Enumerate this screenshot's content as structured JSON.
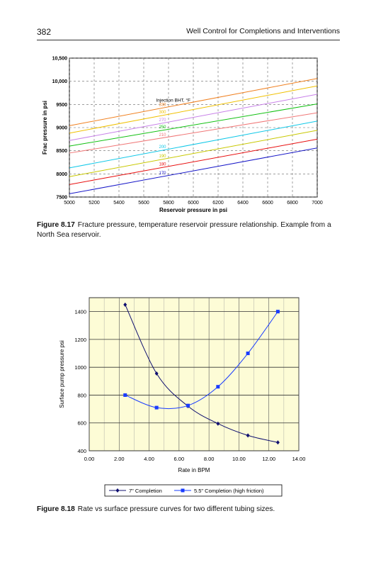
{
  "header": {
    "page_number": "382",
    "running_title": "Well Control for Completions and Interventions"
  },
  "figure1": {
    "caption_label": "Figure 8.17",
    "caption_text": "Fracture pressure, temperature reservoir pressure relationship. Example from a North Sea reservoir.",
    "legend_title": "Injection BHT, °F"
  },
  "figure2": {
    "caption_label": "Figure 8.18",
    "caption_text": "Rate vs surface pressure curves for two different tubing sizes."
  },
  "chart_data": [
    {
      "type": "line",
      "title": "",
      "xlabel": "Reservoir pressure in psi",
      "ylabel": "Frac pressure in psi",
      "xlim": [
        5000,
        7000
      ],
      "ylim": [
        7500,
        10500
      ],
      "x_ticks": [
        "5000",
        "5200",
        "5400",
        "5600",
        "5800",
        "6000",
        "6200",
        "6400",
        "6600",
        "6800",
        "7000"
      ],
      "y_ticks": [
        "7500",
        "8000",
        "8500",
        "9000",
        "9500",
        "10,000",
        "10,500"
      ],
      "grid": "dashed",
      "legend": "inline-left",
      "series": [
        {
          "name": "330",
          "color": "#f08020",
          "x": [
            5000,
            7000
          ],
          "y": [
            9040,
            10060
          ]
        },
        {
          "name": "300",
          "color": "#f0c000",
          "x": [
            5000,
            7000
          ],
          "y": [
            8880,
            9900
          ]
        },
        {
          "name": "270",
          "color": "#c880e8",
          "x": [
            5000,
            7000
          ],
          "y": [
            8720,
            9720
          ]
        },
        {
          "name": "250",
          "color": "#10c010",
          "x": [
            5000,
            7000
          ],
          "y": [
            8600,
            9510
          ]
        },
        {
          "name": "210",
          "color": "#f07878",
          "x": [
            5000,
            7000
          ],
          "y": [
            8450,
            9320
          ]
        },
        {
          "name": "200",
          "color": "#10c8e8",
          "x": [
            5000,
            7000
          ],
          "y": [
            8130,
            9140
          ]
        },
        {
          "name": "190",
          "color": "#c8c800",
          "x": [
            5000,
            7000
          ],
          "y": [
            7940,
            8940
          ]
        },
        {
          "name": "180",
          "color": "#e81010",
          "x": [
            5000,
            7000
          ],
          "y": [
            7770,
            8750
          ]
        },
        {
          "name": "170",
          "color": "#1818c8",
          "x": [
            5000,
            7000
          ],
          "y": [
            7570,
            8560
          ]
        }
      ]
    },
    {
      "type": "line",
      "title": "",
      "xlabel": "Rate in BPM",
      "ylabel": "Surface pump pressure psi",
      "xlim": [
        0,
        14
      ],
      "ylim": [
        400,
        1500
      ],
      "x_ticks": [
        "0.00",
        "2.00",
        "4.00",
        "6.00",
        "8.00",
        "10.00",
        "12.00",
        "14.00"
      ],
      "y_ticks": [
        "400",
        "600",
        "800",
        "1000",
        "1200",
        "1400"
      ],
      "grid": "on",
      "legend": "bottom",
      "series": [
        {
          "name": "7\" Completion",
          "color": "#101070",
          "marker": "diamond",
          "x": [
            2.4,
            4.5,
            6.6,
            8.6,
            10.6,
            12.6
          ],
          "y": [
            1450,
            955,
            720,
            595,
            510,
            460
          ]
        },
        {
          "name": "5.5\" Completion (high friction)",
          "color": "#1a3cff",
          "marker": "square",
          "x": [
            2.4,
            4.5,
            6.6,
            8.6,
            10.6,
            12.6
          ],
          "y": [
            800,
            710,
            725,
            860,
            1100,
            1400
          ]
        }
      ]
    }
  ]
}
